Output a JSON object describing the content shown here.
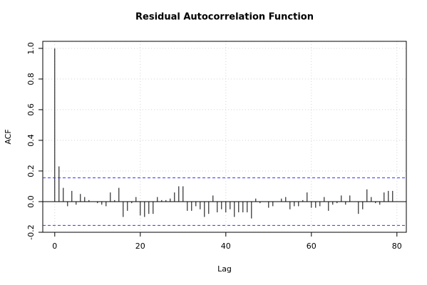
{
  "chart_data": {
    "type": "acf",
    "title": "Residual Autocorrelation Function",
    "x_label": "Lag",
    "y_label": "ACF",
    "x": [
      0,
      1,
      2,
      3,
      4,
      5,
      6,
      7,
      8,
      9,
      10,
      11,
      12,
      13,
      14,
      15,
      16,
      17,
      18,
      19,
      20,
      21,
      22,
      23,
      24,
      25,
      26,
      27,
      28,
      29,
      30,
      31,
      32,
      33,
      34,
      35,
      36,
      37,
      38,
      39,
      40,
      41,
      42,
      43,
      44,
      45,
      46,
      47,
      48,
      49,
      50,
      51,
      52,
      53,
      54,
      55,
      56,
      57,
      58,
      59,
      60,
      61,
      62,
      63,
      64,
      65,
      66,
      67,
      68,
      69,
      70,
      71,
      72,
      73,
      74,
      75,
      76,
      77,
      78,
      79
    ],
    "values": [
      1.0,
      0.23,
      0.09,
      -0.03,
      0.07,
      -0.02,
      0.05,
      0.03,
      0.01,
      0.0,
      -0.01,
      -0.02,
      -0.03,
      0.06,
      0.01,
      0.09,
      -0.1,
      -0.06,
      -0.01,
      0.03,
      -0.09,
      -0.1,
      -0.08,
      -0.08,
      0.03,
      0.01,
      0.01,
      0.02,
      0.06,
      0.1,
      0.1,
      -0.06,
      -0.06,
      -0.03,
      -0.05,
      -0.1,
      -0.08,
      0.04,
      -0.07,
      -0.05,
      -0.07,
      -0.05,
      -0.1,
      -0.07,
      -0.07,
      -0.07,
      -0.11,
      0.02,
      -0.01,
      0.0,
      -0.04,
      -0.03,
      0.0,
      0.02,
      0.03,
      -0.05,
      -0.03,
      -0.03,
      0.01,
      0.06,
      -0.04,
      -0.04,
      -0.03,
      0.03,
      -0.06,
      -0.02,
      -0.01,
      0.04,
      -0.02,
      0.04,
      0.0,
      -0.08,
      -0.05,
      0.08,
      0.03,
      -0.01,
      -0.02,
      0.06,
      0.07,
      0.07
    ],
    "color": "#000000",
    "confidence_limits": [
      0.155,
      -0.155
    ],
    "confidence_color": "#3333ff",
    "xlim": [
      -2.8,
      82.2
    ],
    "ylim": [
      -0.2,
      1.046
    ],
    "xticks": [
      0,
      20,
      40,
      60,
      80
    ],
    "yticks": [
      -0.2,
      {
        "value": 0,
        "label": "0.0"
      },
      0.2,
      0.4,
      0.6,
      0.8,
      {
        "value": 1,
        "label": "1.0"
      }
    ],
    "grid": true
  }
}
